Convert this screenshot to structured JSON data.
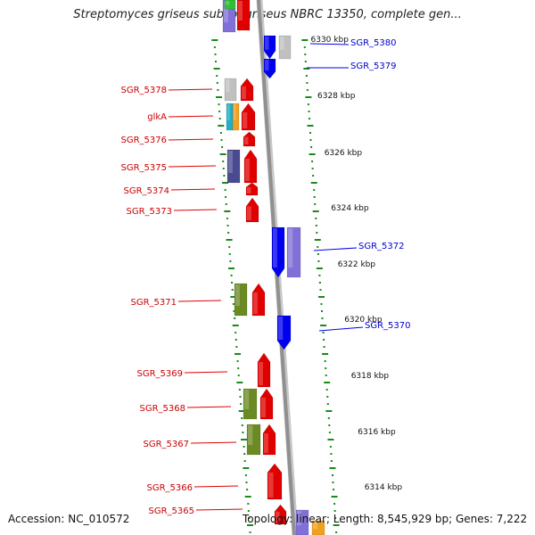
{
  "header": {
    "title": "Streptomyces griseus subsp. griseus NBRC 13350, complete gen..."
  },
  "footer": {
    "accession": "Accession: NC_010572",
    "topology": "Topology: linear; Length: 8,545,929 bp; Genes: 7,222"
  },
  "colors": {
    "forward": "#e00000",
    "reverse": "#0000ee",
    "grey": "#c0c0c0",
    "slate": "#4a4a90",
    "olive": "#6b8a23",
    "lavender": "#8070d8",
    "cyan": "#20b0c8",
    "orange": "#f0a020",
    "tick": "#1a8a1a",
    "axis": "#909090"
  },
  "axis": {
    "unit": "kbp",
    "ticks": [
      6330,
      6328,
      6326,
      6324,
      6322,
      6320,
      6318,
      6316,
      6314
    ]
  },
  "labels": {
    "left": [
      "SGR_5378",
      "glkA",
      "SGR_5376",
      "SGR_5375",
      "SGR_5374",
      "SGR_5373",
      "SGR_5371",
      "SGR_5369",
      "SGR_5368",
      "SGR_5367",
      "SGR_5366",
      "SGR_5365"
    ],
    "right": [
      "SGR_5380",
      "SGR_5379",
      "SGR_5372",
      "SGR_5370"
    ]
  }
}
